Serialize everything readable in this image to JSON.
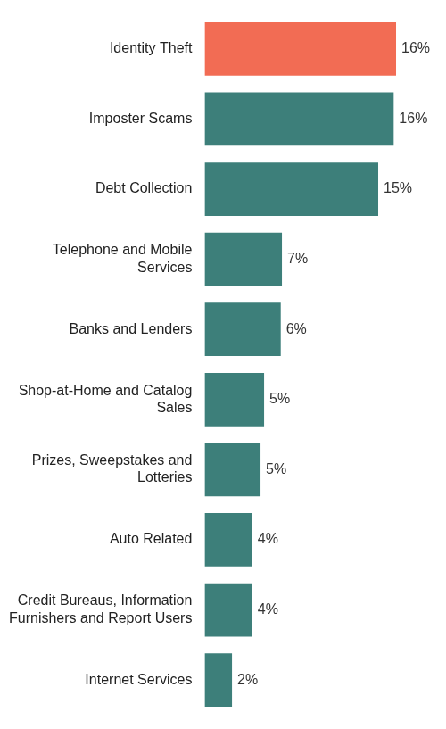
{
  "chart_data": {
    "type": "bar",
    "orientation": "horizontal",
    "categories": [
      "Identity Theft",
      "Imposter Scams",
      "Debt Collection",
      "Telephone and Mobile Services",
      "Banks and Lenders",
      "Shop-at-Home and Catalog Sales",
      "Prizes, Sweepstakes and Lotteries",
      "Auto Related",
      "Credit Bureaus, Information Furnishers and Report Users",
      "Internet Services"
    ],
    "values": [
      16.1,
      15.9,
      14.6,
      6.5,
      6.4,
      5.0,
      4.7,
      4.0,
      4.0,
      2.3
    ],
    "value_labels": [
      "16%",
      "16%",
      "15%",
      "7%",
      "6%",
      "5%",
      "5%",
      "4%",
      "4%",
      "2%"
    ],
    "colors": [
      "#f26c54",
      "#3d7f7a",
      "#3d7f7a",
      "#3d7f7a",
      "#3d7f7a",
      "#3d7f7a",
      "#3d7f7a",
      "#3d7f7a",
      "#3d7f7a",
      "#3d7f7a"
    ],
    "xlim": [
      0,
      17
    ],
    "grid": false,
    "data_labels": true,
    "tick_labels": "y"
  }
}
